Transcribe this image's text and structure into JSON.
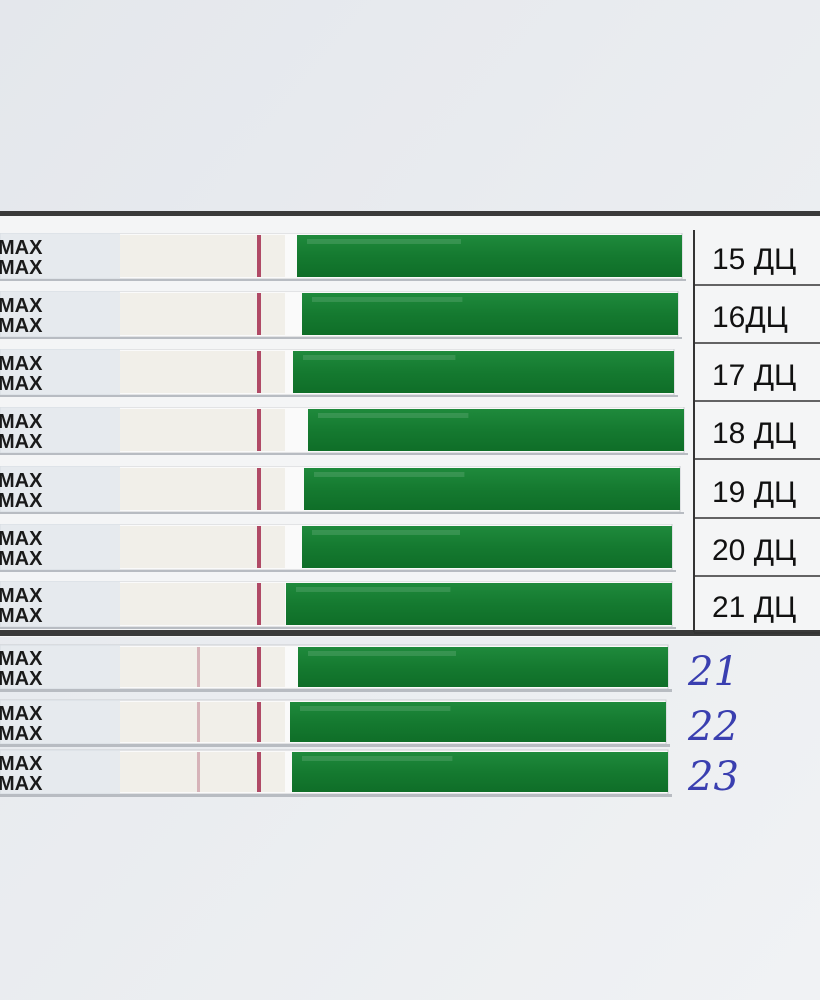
{
  "table_strips": [
    {
      "brand": [
        "MAX",
        "MAX"
      ],
      "label": "15 ДЦ"
    },
    {
      "brand": [
        "MAX",
        "MAX"
      ],
      "label": "16ДЦ"
    },
    {
      "brand": [
        "MAX",
        "MAX"
      ],
      "label": "17 ДЦ"
    },
    {
      "brand": [
        "MAX",
        "MAX"
      ],
      "label": "18 ДЦ"
    },
    {
      "brand": [
        "MAX",
        "MAX"
      ],
      "label": "19 ДЦ"
    },
    {
      "brand": [
        "MAX",
        "MAX"
      ],
      "label": "20 ДЦ"
    },
    {
      "brand": [
        "MAX",
        "MAX"
      ],
      "label": "21 ДЦ"
    }
  ],
  "handwritten_strips": [
    {
      "brand": [
        "MAX",
        "MAX"
      ],
      "label": "21"
    },
    {
      "brand": [
        "MAX",
        "MAX"
      ],
      "label": "22"
    },
    {
      "brand": [
        "MAX",
        "MAX"
      ],
      "label": "23"
    }
  ]
}
